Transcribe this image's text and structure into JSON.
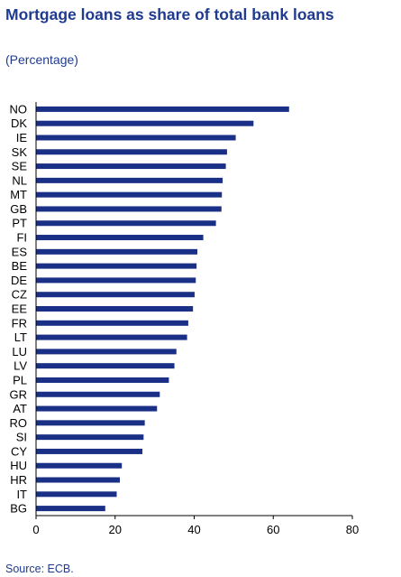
{
  "title": "Mortgage loans as share of total bank loans",
  "subtitle": "(Percentage)",
  "source": "Source: ECB.",
  "colors": {
    "bar": "#1a2f86",
    "text_accent": "#1f3b8f",
    "axis": "#000000"
  },
  "chart_data": {
    "type": "bar",
    "orientation": "horizontal",
    "title": "Mortgage loans as share of total bank loans",
    "subtitle": "(Percentage)",
    "categories": [
      "NO",
      "DK",
      "IE",
      "SK",
      "SE",
      "NL",
      "MT",
      "GB",
      "PT",
      "FI",
      "ES",
      "BE",
      "DE",
      "CZ",
      "EE",
      "FR",
      "LT",
      "LU",
      "LV",
      "PL",
      "GR",
      "AT",
      "RO",
      "SI",
      "CY",
      "HU",
      "HR",
      "IT",
      "BG"
    ],
    "values": [
      64.0,
      55.0,
      50.5,
      48.3,
      48.0,
      47.2,
      47.0,
      46.9,
      45.5,
      42.3,
      40.8,
      40.6,
      40.4,
      40.1,
      39.7,
      38.5,
      38.2,
      35.5,
      35.0,
      33.6,
      31.3,
      30.6,
      27.5,
      27.2,
      26.9,
      21.7,
      21.2,
      20.4,
      17.5
    ],
    "xlim": [
      0,
      80
    ],
    "xticks": [
      "0",
      "20",
      "40",
      "60",
      "80"
    ],
    "xlabel": "",
    "ylabel": "",
    "grid": false,
    "legend": "none"
  }
}
